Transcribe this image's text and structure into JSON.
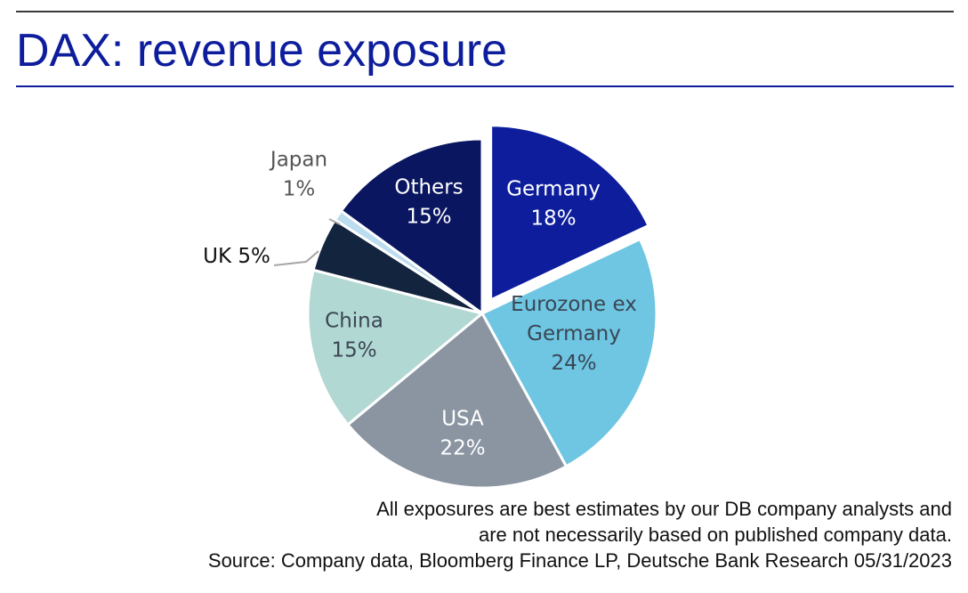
{
  "header": {
    "title": "DAX: revenue exposure"
  },
  "chart_data": {
    "type": "pie",
    "title": "DAX: revenue exposure",
    "slices": [
      {
        "name": "Germany",
        "label_lines": [
          "Germany",
          "18%"
        ],
        "value": 18,
        "color": "#0d1d9c",
        "text_color": "#ffffff",
        "exploded": true
      },
      {
        "name": "Eurozone ex Germany",
        "label_lines": [
          "Eurozone ex",
          "Germany",
          "24%"
        ],
        "value": 24,
        "color": "#6ec6e2",
        "text_color": "#3a4654"
      },
      {
        "name": "USA",
        "label_lines": [
          "USA",
          "22%"
        ],
        "value": 22,
        "color": "#8b95a2",
        "text_color": "#ffffff"
      },
      {
        "name": "China",
        "label_lines": [
          "China",
          "15%"
        ],
        "value": 15,
        "color": "#b2d8d3",
        "text_color": "#3a4654"
      },
      {
        "name": "UK",
        "label_lines": [
          "UK 5%"
        ],
        "value": 5,
        "color": "#13243f",
        "text_color": "#111111",
        "outside": true
      },
      {
        "name": "Japan",
        "label_lines": [
          "Japan",
          "1%"
        ],
        "value": 1,
        "color": "#bcdcf0",
        "text_color": "#555555",
        "outside": true
      },
      {
        "name": "Others",
        "label_lines": [
          "Others",
          "15%"
        ],
        "value": 15,
        "color": "#0a1660",
        "text_color": "#ffffff"
      }
    ]
  },
  "footnote": {
    "line1": "All exposures are best estimates by our DB company analysts and",
    "line2": "are not necessarily based on published company data.",
    "source": "Source: Company data, Bloomberg Finance LP, Deutsche Bank Research 05/31/2023"
  }
}
